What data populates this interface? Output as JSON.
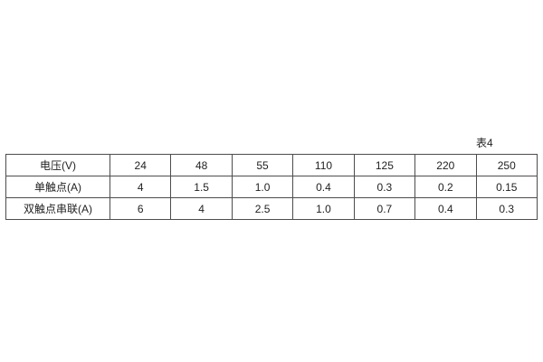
{
  "caption": "表4",
  "colors": {
    "background": "#ffffff",
    "border": "#4d4d4d",
    "text": "#1f1f1f"
  },
  "table": {
    "rows": [
      {
        "cells": [
          "电压(V)",
          "24",
          "48",
          "55",
          "110",
          "125",
          "220",
          "250"
        ]
      },
      {
        "cells": [
          "单触点(A)",
          "4",
          "1.5",
          "1.0",
          "0.4",
          "0.3",
          "0.2",
          "0.15"
        ]
      },
      {
        "cells": [
          "双触点串联(A)",
          "6",
          "4",
          "2.5",
          "1.0",
          "0.7",
          "0.4",
          "0.3"
        ]
      }
    ]
  },
  "chart_data": {
    "type": "table",
    "caption": "表4",
    "row_labels": [
      "电压(V)",
      "单触点(A)",
      "双触点串联(A)"
    ],
    "columns": [
      "24",
      "48",
      "55",
      "110",
      "125",
      "220",
      "250"
    ],
    "series": [
      {
        "name": "电压(V)",
        "values": [
          24,
          48,
          55,
          110,
          125,
          220,
          250
        ]
      },
      {
        "name": "单触点(A)",
        "values": [
          4,
          1.5,
          1.0,
          0.4,
          0.3,
          0.2,
          0.15
        ]
      },
      {
        "name": "双触点串联(A)",
        "values": [
          6,
          4,
          2.5,
          1.0,
          0.7,
          0.4,
          0.3
        ]
      }
    ]
  }
}
